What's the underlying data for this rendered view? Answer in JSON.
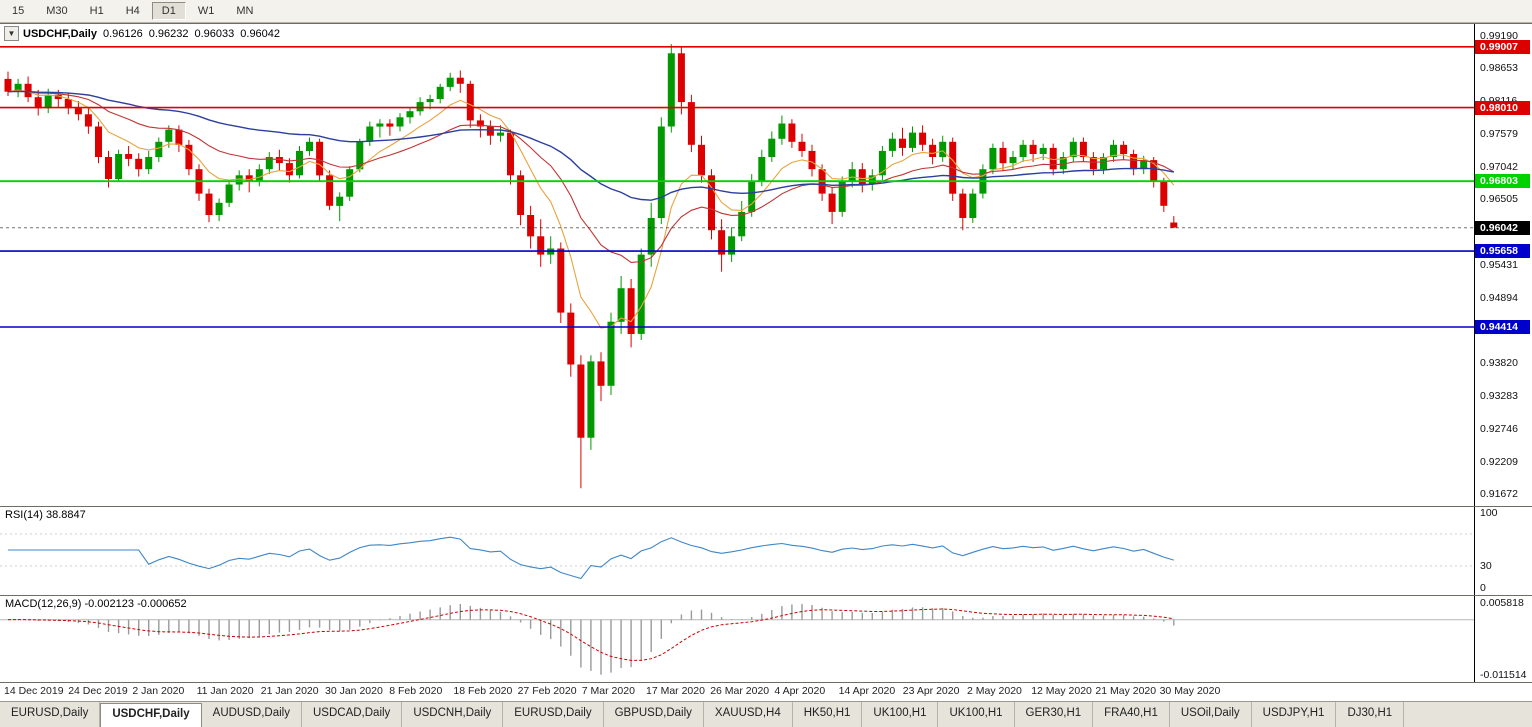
{
  "toolbar": {
    "timeframes": [
      "15",
      "M30",
      "H1",
      "H4",
      "D1",
      "W1",
      "MN"
    ],
    "active": "D1"
  },
  "symbol_bar": {
    "dropdown_icon": "▼",
    "label": "USDCHF,Daily",
    "open": "0.96126",
    "high": "0.96232",
    "low": "0.96033",
    "close": "0.96042"
  },
  "price_scale": {
    "labels": [
      "0.99190",
      "0.98653",
      "0.98116",
      "0.97579",
      "0.97042",
      "0.96505",
      "0.95968",
      "0.95431",
      "0.94894",
      "0.94357",
      "0.93820",
      "0.93283",
      "0.92746",
      "0.92209",
      "0.91672"
    ]
  },
  "rsi": {
    "label": "RSI(14) 38.8847",
    "period": 14,
    "color": "#3e86c8",
    "scale": [
      "100",
      "30",
      "0"
    ],
    "scale_values": [
      100,
      30,
      0
    ],
    "levels": [
      70,
      30
    ]
  },
  "macd": {
    "label": "MACD(12,26,9) -0.002123 -0.000652",
    "fast": 12,
    "slow": 26,
    "signal": 9,
    "scale_top": "0.005818",
    "scale_bottom": "-0.011514",
    "histogram_color": "#9a9a9a",
    "signal_color": "#cc0000"
  },
  "dates": [
    "14 Dec 2019",
    "24 Dec 2019",
    "2 Jan 2020",
    "11 Jan 2020",
    "21 Jan 2020",
    "30 Jan 2020",
    "8 Feb 2020",
    "18 Feb 2020",
    "27 Feb 2020",
    "7 Mar 2020",
    "17 Mar 2020",
    "26 Mar 2020",
    "4 Apr 2020",
    "14 Apr 2020",
    "23 Apr 2020",
    "2 May 2020",
    "12 May 2020",
    "21 May 2020",
    "30 May 2020"
  ],
  "tabs": {
    "active_index": 1,
    "items": [
      "EURUSD,Daily",
      "USDCHF,Daily",
      "AUDUSD,Daily",
      "USDCAD,Daily",
      "USDCNH,Daily",
      "EURUSD,Daily",
      "GBPUSD,Daily",
      "XAUUSD,H4",
      "HK50,H1",
      "UK100,H1",
      "UK100,H1",
      "GER30,H1",
      "FRA40,H1",
      "USOil,Daily",
      "USDJPY,H1",
      "DJ30,H1"
    ]
  },
  "chart_data": {
    "type": "candlestick",
    "symbol": "USDCHF",
    "timeframe": "Daily",
    "current_price": 0.96042,
    "ylim": [
      0.9148,
      0.9938
    ],
    "bull_color": "#009a00",
    "bear_color": "#dd0000",
    "levels": [
      {
        "price": 0.99007,
        "label": "0.99007",
        "color": "#dd0000",
        "width": 1.6
      },
      {
        "price": 0.9801,
        "label": "0.98010",
        "color": "#dd0000",
        "width": 1.6
      },
      {
        "price": 0.96803,
        "label": "0.96803",
        "color": "#00d200",
        "width": 1.8
      },
      {
        "price": 0.96042,
        "label": "0.96042",
        "color": "#000000",
        "width": 1,
        "style": "dash"
      },
      {
        "price": 0.95658,
        "label": "0.95658",
        "color": "#0000cc",
        "width": 1.6
      },
      {
        "price": 0.94414,
        "label": "0.94414",
        "color": "#0000cc",
        "width": 1.6
      }
    ],
    "moving_averages": [
      {
        "name": "fast-ma",
        "period": 8,
        "color": "#e8a33d"
      },
      {
        "name": "medium-ma",
        "period": 21,
        "color": "#c03434"
      },
      {
        "name": "slow-ma",
        "period": 55,
        "color": "#2b3f9e"
      }
    ],
    "candles": [
      [
        0.9848,
        0.986,
        0.982,
        0.9827
      ],
      [
        0.9827,
        0.9848,
        0.9818,
        0.984
      ],
      [
        0.984,
        0.9852,
        0.981,
        0.9818
      ],
      [
        0.9818,
        0.983,
        0.9788,
        0.98
      ],
      [
        0.98,
        0.9832,
        0.9792,
        0.9822
      ],
      [
        0.9822,
        0.983,
        0.9802,
        0.9815
      ],
      [
        0.9815,
        0.9825,
        0.979,
        0.98
      ],
      [
        0.98,
        0.9812,
        0.978,
        0.979
      ],
      [
        0.979,
        0.98,
        0.9758,
        0.977
      ],
      [
        0.977,
        0.9778,
        0.971,
        0.972
      ],
      [
        0.972,
        0.973,
        0.967,
        0.9684
      ],
      [
        0.9684,
        0.9732,
        0.968,
        0.9725
      ],
      [
        0.9725,
        0.9738,
        0.9705,
        0.9717
      ],
      [
        0.9717,
        0.9726,
        0.9688,
        0.97
      ],
      [
        0.97,
        0.973,
        0.9692,
        0.972
      ],
      [
        0.972,
        0.9752,
        0.9712,
        0.9745
      ],
      [
        0.9745,
        0.9772,
        0.9735,
        0.9765
      ],
      [
        0.9765,
        0.9772,
        0.9728,
        0.974
      ],
      [
        0.974,
        0.9748,
        0.969,
        0.97
      ],
      [
        0.97,
        0.9708,
        0.9648,
        0.966
      ],
      [
        0.966,
        0.9668,
        0.9613,
        0.9625
      ],
      [
        0.9625,
        0.9652,
        0.9615,
        0.9645
      ],
      [
        0.9645,
        0.9682,
        0.9638,
        0.9675
      ],
      [
        0.9675,
        0.9698,
        0.9665,
        0.969
      ],
      [
        0.969,
        0.97,
        0.9662,
        0.968
      ],
      [
        0.968,
        0.9708,
        0.9672,
        0.97
      ],
      [
        0.97,
        0.9728,
        0.9692,
        0.972
      ],
      [
        0.972,
        0.9732,
        0.9698,
        0.971
      ],
      [
        0.971,
        0.9718,
        0.9678,
        0.969
      ],
      [
        0.969,
        0.9738,
        0.9685,
        0.973
      ],
      [
        0.973,
        0.9752,
        0.9722,
        0.9745
      ],
      [
        0.9745,
        0.975,
        0.968,
        0.969
      ],
      [
        0.969,
        0.9698,
        0.9633,
        0.964
      ],
      [
        0.964,
        0.9662,
        0.9615,
        0.9655
      ],
      [
        0.9655,
        0.9705,
        0.9648,
        0.97
      ],
      [
        0.97,
        0.975,
        0.9695,
        0.9745
      ],
      [
        0.9745,
        0.9778,
        0.9738,
        0.977
      ],
      [
        0.977,
        0.9782,
        0.9752,
        0.9775
      ],
      [
        0.9775,
        0.9782,
        0.9755,
        0.977
      ],
      [
        0.977,
        0.9792,
        0.9762,
        0.9785
      ],
      [
        0.9785,
        0.98,
        0.9775,
        0.9795
      ],
      [
        0.9795,
        0.9818,
        0.9788,
        0.981
      ],
      [
        0.981,
        0.9822,
        0.9798,
        0.9815
      ],
      [
        0.9815,
        0.984,
        0.9808,
        0.9835
      ],
      [
        0.9835,
        0.9858,
        0.9828,
        0.985
      ],
      [
        0.985,
        0.9862,
        0.9825,
        0.984
      ],
      [
        0.984,
        0.9845,
        0.9768,
        0.978
      ],
      [
        0.978,
        0.979,
        0.9752,
        0.977
      ],
      [
        0.977,
        0.978,
        0.974,
        0.9755
      ],
      [
        0.9755,
        0.9772,
        0.9745,
        0.976
      ],
      [
        0.976,
        0.9765,
        0.9675,
        0.969
      ],
      [
        0.969,
        0.9698,
        0.9608,
        0.9625
      ],
      [
        0.9625,
        0.964,
        0.957,
        0.959
      ],
      [
        0.959,
        0.9618,
        0.954,
        0.956
      ],
      [
        0.956,
        0.959,
        0.9545,
        0.957
      ],
      [
        0.957,
        0.958,
        0.9448,
        0.9465
      ],
      [
        0.9465,
        0.948,
        0.936,
        0.938
      ],
      [
        0.938,
        0.9395,
        0.9177,
        0.926
      ],
      [
        0.926,
        0.9395,
        0.924,
        0.9385
      ],
      [
        0.9385,
        0.94,
        0.932,
        0.9345
      ],
      [
        0.9345,
        0.9465,
        0.933,
        0.945
      ],
      [
        0.945,
        0.9525,
        0.943,
        0.9505
      ],
      [
        0.9505,
        0.952,
        0.9408,
        0.943
      ],
      [
        0.943,
        0.957,
        0.942,
        0.956
      ],
      [
        0.956,
        0.9645,
        0.954,
        0.962
      ],
      [
        0.962,
        0.9785,
        0.961,
        0.977
      ],
      [
        0.977,
        0.9905,
        0.976,
        0.989
      ],
      [
        0.989,
        0.9901,
        0.979,
        0.981
      ],
      [
        0.981,
        0.9822,
        0.9728,
        0.974
      ],
      [
        0.974,
        0.9755,
        0.9678,
        0.969
      ],
      [
        0.969,
        0.97,
        0.9585,
        0.96
      ],
      [
        0.96,
        0.9618,
        0.9532,
        0.956
      ],
      [
        0.956,
        0.9605,
        0.9548,
        0.959
      ],
      [
        0.959,
        0.9648,
        0.9582,
        0.963
      ],
      [
        0.963,
        0.9692,
        0.9622,
        0.968
      ],
      [
        0.968,
        0.9732,
        0.9672,
        0.972
      ],
      [
        0.972,
        0.9762,
        0.9712,
        0.975
      ],
      [
        0.975,
        0.9788,
        0.974,
        0.9775
      ],
      [
        0.9775,
        0.9782,
        0.9735,
        0.9745
      ],
      [
        0.9745,
        0.9758,
        0.972,
        0.973
      ],
      [
        0.973,
        0.974,
        0.9688,
        0.97
      ],
      [
        0.97,
        0.9708,
        0.9648,
        0.966
      ],
      [
        0.966,
        0.967,
        0.961,
        0.963
      ],
      [
        0.963,
        0.9688,
        0.9622,
        0.968
      ],
      [
        0.968,
        0.9712,
        0.967,
        0.97
      ],
      [
        0.97,
        0.971,
        0.9662,
        0.9675
      ],
      [
        0.9675,
        0.97,
        0.9665,
        0.969
      ],
      [
        0.969,
        0.9738,
        0.9682,
        0.973
      ],
      [
        0.973,
        0.976,
        0.972,
        0.975
      ],
      [
        0.975,
        0.9768,
        0.9722,
        0.9735
      ],
      [
        0.9735,
        0.977,
        0.9728,
        0.976
      ],
      [
        0.976,
        0.9772,
        0.973,
        0.974
      ],
      [
        0.974,
        0.975,
        0.9708,
        0.972
      ],
      [
        0.972,
        0.9755,
        0.9712,
        0.9745
      ],
      [
        0.9745,
        0.9752,
        0.9648,
        0.966
      ],
      [
        0.966,
        0.9668,
        0.96,
        0.962
      ],
      [
        0.962,
        0.9668,
        0.9612,
        0.966
      ],
      [
        0.966,
        0.9708,
        0.9652,
        0.97
      ],
      [
        0.97,
        0.9742,
        0.9692,
        0.9735
      ],
      [
        0.9735,
        0.9745,
        0.9698,
        0.971
      ],
      [
        0.971,
        0.973,
        0.97,
        0.972
      ],
      [
        0.972,
        0.9748,
        0.9712,
        0.974
      ],
      [
        0.974,
        0.9748,
        0.9712,
        0.9725
      ],
      [
        0.9725,
        0.9742,
        0.9715,
        0.9735
      ],
      [
        0.9735,
        0.9742,
        0.969,
        0.97
      ],
      [
        0.97,
        0.9728,
        0.9692,
        0.972
      ],
      [
        0.972,
        0.9752,
        0.9712,
        0.9745
      ],
      [
        0.9745,
        0.9752,
        0.9712,
        0.972
      ],
      [
        0.972,
        0.9728,
        0.969,
        0.97
      ],
      [
        0.97,
        0.9726,
        0.9692,
        0.972
      ],
      [
        0.972,
        0.9748,
        0.9712,
        0.974
      ],
      [
        0.974,
        0.9746,
        0.9716,
        0.9725
      ],
      [
        0.9725,
        0.9732,
        0.969,
        0.97
      ],
      [
        0.97,
        0.9722,
        0.9692,
        0.9715
      ],
      [
        0.9715,
        0.972,
        0.967,
        0.968
      ],
      [
        0.968,
        0.9686,
        0.963,
        0.964
      ],
      [
        0.96126,
        0.96232,
        0.96033,
        0.96042
      ]
    ]
  }
}
